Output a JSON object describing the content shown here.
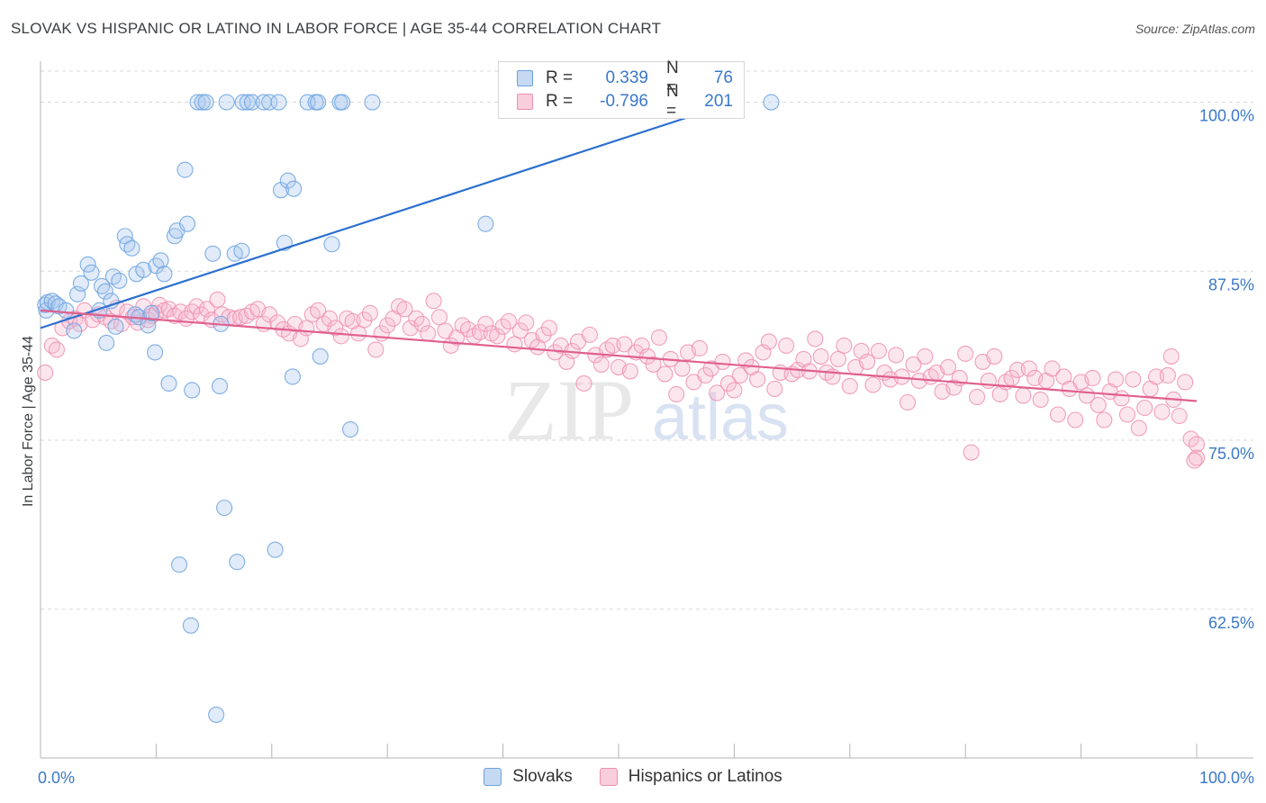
{
  "title": "SLOVAK VS HISPANIC OR LATINO IN LABOR FORCE | AGE 35-44 CORRELATION CHART",
  "source": "Source: ZipAtlas.com",
  "watermark": {
    "zip": "ZIP",
    "atlas": "atlas"
  },
  "colors": {
    "blue": "#6aa2e0",
    "blue_line": "#2a6fd0",
    "pink": "#ef8fb0",
    "pink_line": "#e0608e",
    "tick_label": "#3a78c9"
  },
  "legend": {
    "rows": [
      {
        "series": "Slovaks",
        "r_label": "R =",
        "r_value": "0.339",
        "n_label": "N =",
        "n_value": "76"
      },
      {
        "series": "Hispanics or Latinos",
        "r_label": "R =",
        "r_value": "-0.796",
        "n_label": "N =",
        "n_value": "201"
      }
    ]
  },
  "chart_data": {
    "type": "scatter",
    "title": "SLOVAK VS HISPANIC OR LATINO IN LABOR FORCE | AGE 35-44 CORRELATION CHART",
    "xlabel": "",
    "ylabel": "In Labor Force | Age 35-44",
    "xlim": [
      0,
      100
    ],
    "ylim": [
      51.5,
      102.3
    ],
    "x_tick_labels": [
      "0.0%",
      "100.0%"
    ],
    "y_ticks": [
      62.5,
      75.0,
      87.5,
      100.0
    ],
    "y_tick_labels": [
      "62.5%",
      "75.0%",
      "87.5%",
      "100.0%"
    ],
    "grid": "horizontal dashed",
    "legend_position": "top-center",
    "series": [
      {
        "name": "Slovaks",
        "color": "#6aa2e0",
        "r": 0.339,
        "n": 76,
        "trend": {
          "x": [
            0,
            60
          ],
          "y": [
            83.3,
            100.0
          ]
        },
        "points": [
          [
            0.4,
            85.0
          ],
          [
            0.5,
            84.6
          ],
          [
            0.6,
            85.2
          ],
          [
            1.0,
            85.3
          ],
          [
            1.3,
            85.1
          ],
          [
            1.6,
            84.9
          ],
          [
            2.2,
            84.6
          ],
          [
            2.9,
            83.1
          ],
          [
            3.2,
            85.8
          ],
          [
            3.5,
            86.6
          ],
          [
            4.1,
            88.0
          ],
          [
            4.4,
            87.4
          ],
          [
            5.1,
            84.6
          ],
          [
            5.3,
            86.4
          ],
          [
            5.6,
            86.0
          ],
          [
            5.7,
            82.2
          ],
          [
            6.1,
            85.3
          ],
          [
            6.3,
            87.1
          ],
          [
            6.5,
            83.4
          ],
          [
            6.8,
            86.8
          ],
          [
            7.3,
            90.1
          ],
          [
            7.5,
            89.5
          ],
          [
            7.9,
            89.2
          ],
          [
            8.2,
            84.3
          ],
          [
            8.3,
            87.3
          ],
          [
            8.5,
            84.1
          ],
          [
            8.9,
            87.6
          ],
          [
            9.3,
            83.5
          ],
          [
            9.6,
            84.4
          ],
          [
            9.9,
            81.5
          ],
          [
            10.0,
            87.9
          ],
          [
            10.4,
            88.3
          ],
          [
            10.7,
            87.3
          ],
          [
            11.1,
            79.2
          ],
          [
            11.6,
            90.1
          ],
          [
            11.8,
            90.5
          ],
          [
            12.0,
            65.8
          ],
          [
            12.5,
            95.0
          ],
          [
            12.7,
            91.0
          ],
          [
            13.0,
            61.3
          ],
          [
            13.1,
            78.7
          ],
          [
            13.6,
            100.0
          ],
          [
            14.0,
            100.0
          ],
          [
            14.3,
            100.0
          ],
          [
            14.9,
            88.8
          ],
          [
            15.2,
            54.7
          ],
          [
            15.5,
            79.0
          ],
          [
            15.6,
            83.6
          ],
          [
            15.9,
            70.0
          ],
          [
            16.1,
            100.0
          ],
          [
            16.8,
            88.8
          ],
          [
            17.0,
            66.0
          ],
          [
            17.4,
            89.0
          ],
          [
            17.5,
            100.0
          ],
          [
            17.9,
            100.0
          ],
          [
            18.3,
            100.0
          ],
          [
            19.3,
            100.0
          ],
          [
            19.8,
            100.0
          ],
          [
            20.3,
            66.9
          ],
          [
            20.6,
            100.0
          ],
          [
            20.8,
            93.5
          ],
          [
            21.1,
            89.6
          ],
          [
            21.4,
            94.2
          ],
          [
            21.9,
            93.6
          ],
          [
            21.8,
            79.7
          ],
          [
            23.1,
            100.0
          ],
          [
            23.8,
            100.0
          ],
          [
            24.0,
            100.0
          ],
          [
            24.2,
            81.2
          ],
          [
            25.2,
            89.5
          ],
          [
            25.9,
            100.0
          ],
          [
            26.1,
            100.0
          ],
          [
            26.8,
            75.8
          ],
          [
            28.7,
            100.0
          ],
          [
            38.5,
            91.0
          ],
          [
            63.2,
            100.0
          ]
        ]
      },
      {
        "name": "Hispanics or Latinos",
        "color": "#ef8fb0",
        "r": -0.796,
        "n": 201,
        "trend": {
          "x": [
            0,
            100
          ],
          "y": [
            84.6,
            77.9
          ]
        },
        "points": [
          [
            0.4,
            80.0
          ],
          [
            1.0,
            82.0
          ],
          [
            1.4,
            81.7
          ],
          [
            1.9,
            83.3
          ],
          [
            2.5,
            83.8
          ],
          [
            3.0,
            84.0
          ],
          [
            3.4,
            83.6
          ],
          [
            3.8,
            84.6
          ],
          [
            4.5,
            83.9
          ],
          [
            5.0,
            84.3
          ],
          [
            5.6,
            84.1
          ],
          [
            6.1,
            83.8
          ],
          [
            6.6,
            84.8
          ],
          [
            7.0,
            83.6
          ],
          [
            7.5,
            84.5
          ],
          [
            8.0,
            84.1
          ],
          [
            8.4,
            83.7
          ],
          [
            8.9,
            84.9
          ],
          [
            9.3,
            83.9
          ],
          [
            9.6,
            84.2
          ],
          [
            10.0,
            84.4
          ],
          [
            10.3,
            85.0
          ],
          [
            10.7,
            84.6
          ],
          [
            11.1,
            84.7
          ],
          [
            11.6,
            84.2
          ],
          [
            12.1,
            84.5
          ],
          [
            12.6,
            84.0
          ],
          [
            13.1,
            84.5
          ],
          [
            13.5,
            84.9
          ],
          [
            13.9,
            84.3
          ],
          [
            14.4,
            84.7
          ],
          [
            14.8,
            83.9
          ],
          [
            15.3,
            85.4
          ],
          [
            15.7,
            84.3
          ],
          [
            16.3,
            84.1
          ],
          [
            16.8,
            84.0
          ],
          [
            17.3,
            84.1
          ],
          [
            17.8,
            84.2
          ],
          [
            18.3,
            84.5
          ],
          [
            18.8,
            84.7
          ],
          [
            19.3,
            83.6
          ],
          [
            19.8,
            84.3
          ],
          [
            20.5,
            83.7
          ],
          [
            21.0,
            83.2
          ],
          [
            21.5,
            82.9
          ],
          [
            22.0,
            83.6
          ],
          [
            22.5,
            82.5
          ],
          [
            23.0,
            83.3
          ],
          [
            23.5,
            84.3
          ],
          [
            24.0,
            84.6
          ],
          [
            24.5,
            83.6
          ],
          [
            25.0,
            84.0
          ],
          [
            25.5,
            83.3
          ],
          [
            26.0,
            82.7
          ],
          [
            26.5,
            84.0
          ],
          [
            27.0,
            83.8
          ],
          [
            27.5,
            82.9
          ],
          [
            28.0,
            83.9
          ],
          [
            28.5,
            84.4
          ],
          [
            29.0,
            81.7
          ],
          [
            29.5,
            82.9
          ],
          [
            30.0,
            83.5
          ],
          [
            30.5,
            84.0
          ],
          [
            31.0,
            84.9
          ],
          [
            31.5,
            84.7
          ],
          [
            32.0,
            83.3
          ],
          [
            32.5,
            84.0
          ],
          [
            33.0,
            83.6
          ],
          [
            33.5,
            82.9
          ],
          [
            34.0,
            85.3
          ],
          [
            34.5,
            84.1
          ],
          [
            35.0,
            83.1
          ],
          [
            35.5,
            82.0
          ],
          [
            36.0,
            82.6
          ],
          [
            36.5,
            83.5
          ],
          [
            37.0,
            83.2
          ],
          [
            37.5,
            82.7
          ],
          [
            38.0,
            83.0
          ],
          [
            38.5,
            83.6
          ],
          [
            39.0,
            82.9
          ],
          [
            39.5,
            82.7
          ],
          [
            40.0,
            83.4
          ],
          [
            40.5,
            83.8
          ],
          [
            41.0,
            82.1
          ],
          [
            41.5,
            83.1
          ],
          [
            42.0,
            83.7
          ],
          [
            42.5,
            82.4
          ],
          [
            43.0,
            81.9
          ],
          [
            43.5,
            82.8
          ],
          [
            44.0,
            83.3
          ],
          [
            44.5,
            81.5
          ],
          [
            45.0,
            82.0
          ],
          [
            45.5,
            80.8
          ],
          [
            46.0,
            81.6
          ],
          [
            46.5,
            82.3
          ],
          [
            47.0,
            79.2
          ],
          [
            47.5,
            82.8
          ],
          [
            48.0,
            81.3
          ],
          [
            48.5,
            80.6
          ],
          [
            49.0,
            81.7
          ],
          [
            49.5,
            82.0
          ],
          [
            50.0,
            80.4
          ],
          [
            50.5,
            82.1
          ],
          [
            51.0,
            80.1
          ],
          [
            51.5,
            81.5
          ],
          [
            52.0,
            82.0
          ],
          [
            52.5,
            81.2
          ],
          [
            53.0,
            80.6
          ],
          [
            53.5,
            82.6
          ],
          [
            54.0,
            79.9
          ],
          [
            54.5,
            81.0
          ],
          [
            55.0,
            78.4
          ],
          [
            55.5,
            80.3
          ],
          [
            56.0,
            81.5
          ],
          [
            56.5,
            79.3
          ],
          [
            57.0,
            81.8
          ],
          [
            57.5,
            79.8
          ],
          [
            58.0,
            80.3
          ],
          [
            58.5,
            78.5
          ],
          [
            59.0,
            80.8
          ],
          [
            59.5,
            79.2
          ],
          [
            60.0,
            78.7
          ],
          [
            60.5,
            79.8
          ],
          [
            61.0,
            80.9
          ],
          [
            61.5,
            80.4
          ],
          [
            62.0,
            79.5
          ],
          [
            62.5,
            81.5
          ],
          [
            63.0,
            82.3
          ],
          [
            63.5,
            78.8
          ],
          [
            64.0,
            80.0
          ],
          [
            64.5,
            82.0
          ],
          [
            65.0,
            79.9
          ],
          [
            65.5,
            80.2
          ],
          [
            66.0,
            81.0
          ],
          [
            66.5,
            80.1
          ],
          [
            67.0,
            82.5
          ],
          [
            67.5,
            81.2
          ],
          [
            68.0,
            80.0
          ],
          [
            68.5,
            79.7
          ],
          [
            69.0,
            81.0
          ],
          [
            69.5,
            82.0
          ],
          [
            70.0,
            79.0
          ],
          [
            70.5,
            80.4
          ],
          [
            71.0,
            81.6
          ],
          [
            71.5,
            80.8
          ],
          [
            72.0,
            79.1
          ],
          [
            72.5,
            81.6
          ],
          [
            73.0,
            80.0
          ],
          [
            73.5,
            79.5
          ],
          [
            74.0,
            81.3
          ],
          [
            74.5,
            79.7
          ],
          [
            75.0,
            77.8
          ],
          [
            75.5,
            80.6
          ],
          [
            76.0,
            79.4
          ],
          [
            76.5,
            81.2
          ],
          [
            77.0,
            79.7
          ],
          [
            77.5,
            80.0
          ],
          [
            78.0,
            78.6
          ],
          [
            78.5,
            80.4
          ],
          [
            79.0,
            78.9
          ],
          [
            79.5,
            79.6
          ],
          [
            80.0,
            81.4
          ],
          [
            80.5,
            74.1
          ],
          [
            81.0,
            78.2
          ],
          [
            81.5,
            80.8
          ],
          [
            82.0,
            79.4
          ],
          [
            82.5,
            81.2
          ],
          [
            83.0,
            78.4
          ],
          [
            83.5,
            79.3
          ],
          [
            84.0,
            79.6
          ],
          [
            84.5,
            80.2
          ],
          [
            85.0,
            78.3
          ],
          [
            85.5,
            80.3
          ],
          [
            86.0,
            79.6
          ],
          [
            86.5,
            78.0
          ],
          [
            87.0,
            79.4
          ],
          [
            87.5,
            80.3
          ],
          [
            88.0,
            76.9
          ],
          [
            88.5,
            79.7
          ],
          [
            89.0,
            78.8
          ],
          [
            89.5,
            76.5
          ],
          [
            90.0,
            79.3
          ],
          [
            90.5,
            78.3
          ],
          [
            91.0,
            79.6
          ],
          [
            91.5,
            77.6
          ],
          [
            92.0,
            76.5
          ],
          [
            92.5,
            78.6
          ],
          [
            93.0,
            79.5
          ],
          [
            93.5,
            78.1
          ],
          [
            94.0,
            76.9
          ],
          [
            94.5,
            79.5
          ],
          [
            95.0,
            75.9
          ],
          [
            95.5,
            77.4
          ],
          [
            96.0,
            78.8
          ],
          [
            96.5,
            79.7
          ],
          [
            97.0,
            77.1
          ],
          [
            97.5,
            79.8
          ],
          [
            98.0,
            78.0
          ],
          [
            98.5,
            76.8
          ],
          [
            99.0,
            79.3
          ],
          [
            99.5,
            75.1
          ],
          [
            100.0,
            74.7
          ],
          [
            97.8,
            81.2
          ],
          [
            100.0,
            73.7
          ],
          [
            99.8,
            73.5
          ]
        ]
      }
    ]
  }
}
